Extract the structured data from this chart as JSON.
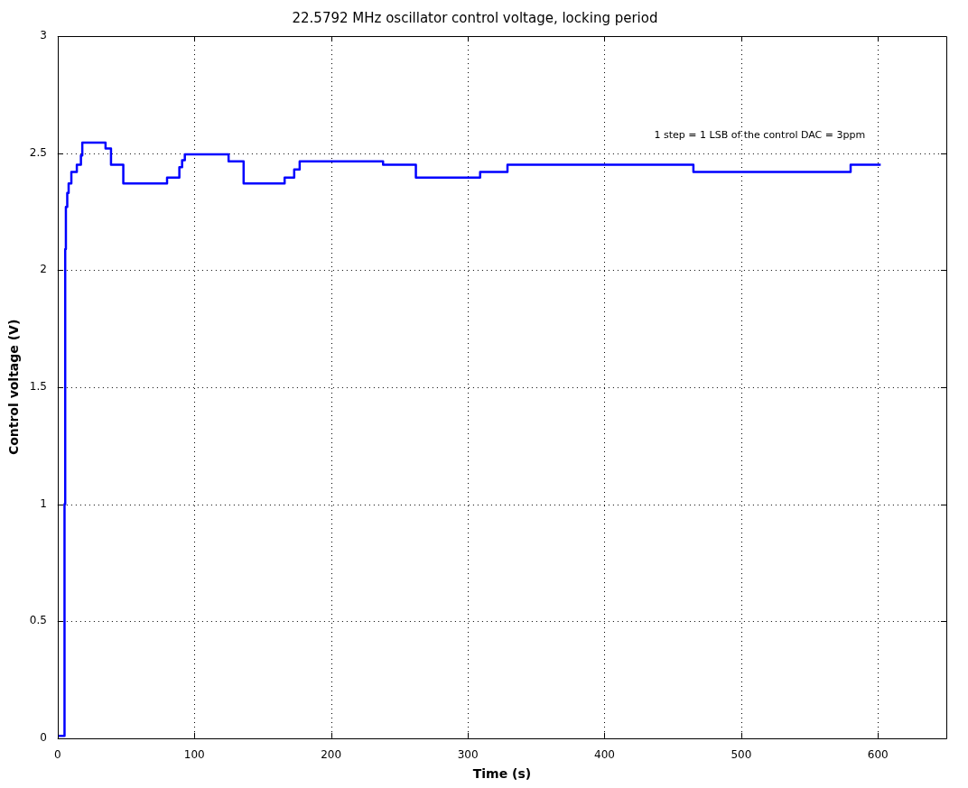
{
  "chart_data": {
    "type": "step",
    "title": "22.5792 MHz oscillator control voltage, locking period",
    "xlabel": "Time (s)",
    "ylabel": "Control voltage (V)",
    "annotations": [
      "1 step = 1 LSB of the control DAC = 3ppm"
    ],
    "x": [
      0,
      4,
      5,
      5.5,
      6,
      7,
      8,
      10,
      14,
      17,
      18,
      35,
      39,
      48,
      80,
      89,
      91,
      93,
      125,
      136,
      166,
      173,
      177,
      238,
      262,
      309,
      329,
      465,
      580,
      602
    ],
    "series": [
      {
        "color": "#0000ff",
        "values": [
          0.01,
          0.01,
          1.0,
          2.09,
          2.27,
          2.33,
          2.37,
          2.42,
          2.45,
          2.49,
          2.545,
          2.52,
          2.45,
          2.37,
          2.395,
          2.44,
          2.47,
          2.495,
          2.465,
          2.37,
          2.395,
          2.43,
          2.465,
          2.45,
          2.395,
          2.42,
          2.45,
          2.42,
          2.45,
          2.45
        ]
      }
    ],
    "xlim": [
      0,
      650
    ],
    "xticks": [
      0,
      100,
      200,
      300,
      400,
      500,
      600
    ],
    "ylim": [
      0,
      3
    ],
    "yticks": [
      0,
      0.5,
      1,
      1.5,
      2,
      2.5,
      3
    ],
    "grid": true,
    "legend": false,
    "marker": "none",
    "line_style": "solid"
  }
}
